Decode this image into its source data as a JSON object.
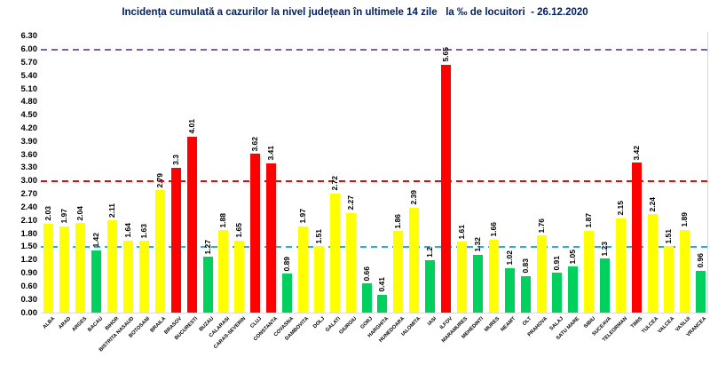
{
  "chart_data": {
    "type": "bar",
    "title": "Incidența cumulată a cazurilor la nivel județean în ultimele 14 zile   la ‰ de locuitori  - 26.12.2020",
    "title_color": "#002060",
    "xlabel": "",
    "ylabel": "",
    "ylim": [
      0,
      6.3
    ],
    "ytick_step": 0.3,
    "grid": false,
    "legend_position": "none",
    "axis_color": "#D9D9D9",
    "categories": [
      "ALBA",
      "ARAD",
      "ARGES",
      "BACAU",
      "BIHOR",
      "BISTRITA NASAUD",
      "BOTOSANI",
      "BRAILA",
      "BRASOV",
      "BUCURESTI",
      "BUZAU",
      "CALARASI",
      "CARAS-SEVERIN",
      "CLUJ",
      "CONSTANTA",
      "COVASNA",
      "DAMBOVITA",
      "DOLJ",
      "GALATI",
      "GIURGIU",
      "GORJ",
      "HARGHITA",
      "HUNEDOARA",
      "IALOMITA",
      "IASI",
      "ILFOV",
      "MARAMURES",
      "MEHEDINTI",
      "MURES",
      "NEAMT",
      "OLT",
      "PRAHOVA",
      "SALAJ",
      "SATU MARE",
      "SIBIU",
      "SUCEAVA",
      "TELEORMAN",
      "TIMIS",
      "TULCEA",
      "VALCEA",
      "VASLUI",
      "VRANCEA"
    ],
    "values": [
      "2.03",
      "1.97",
      "2.04",
      "1.42",
      "2.11",
      "1.64",
      "1.63",
      "2.79",
      "3.3",
      "4.01",
      "1.27",
      "1.88",
      "1.65",
      "3.62",
      "3.41",
      "0.89",
      "1.97",
      "1.51",
      "2.72",
      "2.27",
      "0.66",
      "0.41",
      "1.86",
      "2.39",
      "1.2",
      "5.65",
      "1.61",
      "1.32",
      "1.66",
      "1.02",
      "0.83",
      "1.76",
      "0.91",
      "1.05",
      "1.87",
      "1.23",
      "2.15",
      "3.42",
      "2.24",
      "1.51",
      "1.89",
      "0.96"
    ],
    "palette": {
      "green": "#00D05E",
      "yellow": "#FFFF00",
      "red": "#FF0000"
    },
    "bar_color_rule": {
      "thresholds": [
        {
          "max": 1.5,
          "color_key": "green"
        },
        {
          "max": 3.0,
          "color_key": "yellow"
        },
        {
          "max": 99,
          "color_key": "red"
        }
      ]
    },
    "reference_lines": [
      {
        "value": 1.5,
        "color": "#29ABE2",
        "style": "dashed"
      },
      {
        "value": 3.0,
        "color": "#FF0000",
        "style": "dashed"
      },
      {
        "value": 6.0,
        "color": "#7D5FA8",
        "style": "dashed"
      }
    ]
  }
}
